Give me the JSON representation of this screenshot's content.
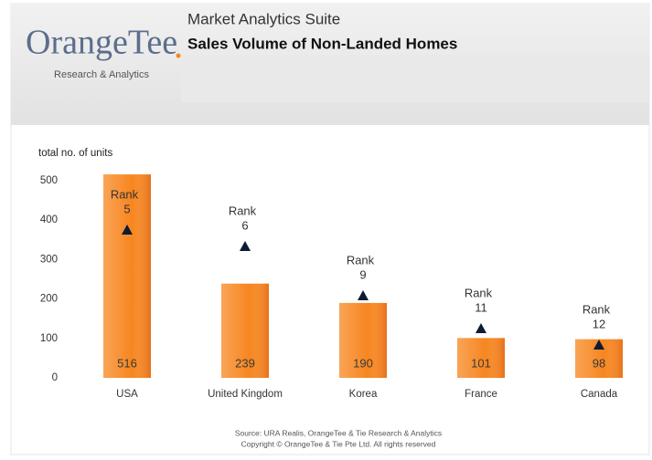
{
  "header": {
    "brand": "OrangeTee",
    "brand_tagline": "Research & Analytics",
    "app_title": "Market Analytics Suite"
  },
  "chart_data": {
    "type": "bar",
    "title": "Sales Volume of Non-Landed Homes",
    "y_label": "total no. of units",
    "categories": [
      "USA",
      "United Kingdom",
      "Korea",
      "France",
      "Canada"
    ],
    "values": [
      516,
      239,
      190,
      101,
      98
    ],
    "color": "#f7861f",
    "ylim": [
      0,
      500
    ],
    "yticks": [
      0,
      100,
      200,
      300,
      400,
      500
    ],
    "rank_label": "Rank",
    "ranks": [
      5,
      6,
      9,
      11,
      12
    ],
    "rank_color": "#0d1b33",
    "y2lim": [
      14,
      2
    ],
    "source": "Source: URA Realis, OrangeTee & Tie Research & Analytics",
    "copyright": "Copyright © OrangeTee & Tie Pte Ltd. All rights reserved"
  }
}
